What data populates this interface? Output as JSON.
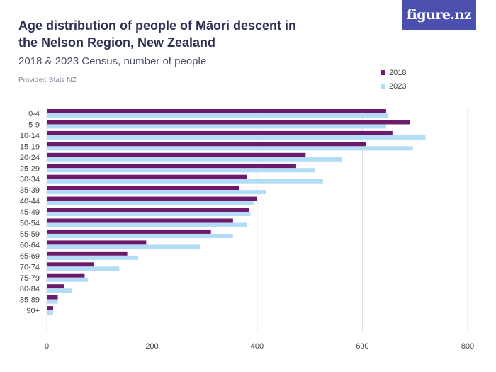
{
  "header": {
    "title": "Age distribution of people of Māori descent in the Nelson Region, New Zealand",
    "subtitle": "2018 & 2023 Census, number of people",
    "provider": "Provider: Stats NZ",
    "logo_text": "figure.nz"
  },
  "colors": {
    "series_2018": "#6e1a6a",
    "series_2023": "#b3dcf7",
    "grid": "#e2e2e2",
    "axis_text": "#444444",
    "logo_bg": "#4b4fad"
  },
  "chart_data": {
    "type": "bar",
    "orientation": "horizontal",
    "categories": [
      "0-4",
      "5-9",
      "10-14",
      "15-19",
      "20-24",
      "25-29",
      "30-34",
      "35-39",
      "40-44",
      "45-49",
      "50-54",
      "55-59",
      "60-64",
      "65-69",
      "70-74",
      "75-79",
      "80-84",
      "85-89",
      "90+"
    ],
    "series": [
      {
        "name": "2018",
        "values": [
          645,
          690,
          657,
          606,
          492,
          474,
          381,
          366,
          399,
          384,
          354,
          312,
          189,
          153,
          90,
          72,
          33,
          21,
          12
        ]
      },
      {
        "name": "2023",
        "values": [
          648,
          645,
          720,
          696,
          561,
          510,
          525,
          417,
          393,
          387,
          381,
          354,
          291,
          174,
          138,
          78,
          48,
          21,
          12
        ]
      }
    ],
    "xlim": [
      0,
      800
    ],
    "xticks": [
      0,
      200,
      400,
      600,
      800
    ],
    "legend_position": "top-right",
    "grid": true
  }
}
